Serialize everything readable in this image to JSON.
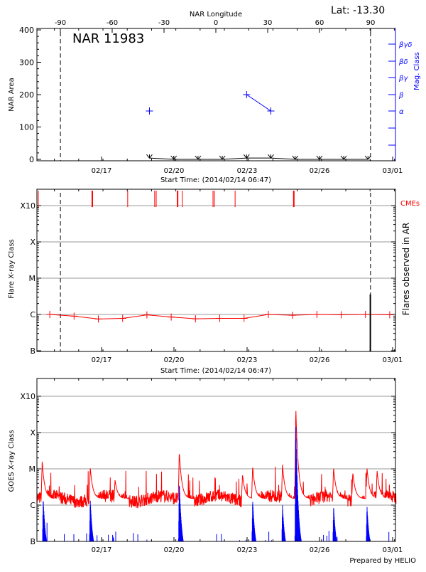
{
  "chart_data": [
    {
      "type": "line",
      "title": "NAR 11983",
      "corner_label": "Lat: -13.30",
      "xlabel": "Start Time: (2014/02/14 06:47)",
      "top_xlabel": "NAR Longitude",
      "ylabel": "NAR Area",
      "right_ylabel": "Mag. Class",
      "start_time": "2014-02-14T06:47",
      "x_ticks": [
        "02/17",
        "02/20",
        "02/23",
        "02/26",
        "03/01"
      ],
      "top_x_ticks": [
        "-90",
        "-60",
        "-30",
        "0",
        "30",
        "60",
        "90"
      ],
      "y_ticks": [
        "0",
        "100",
        "200",
        "300",
        "400"
      ],
      "ylim": [
        0,
        400
      ],
      "right_y_ticks": [
        "α",
        "β",
        "βγ",
        "βδ",
        "βγδ"
      ],
      "limb_markers": [
        "2014-02-15T06:00",
        "2014-02-28T00:30"
      ],
      "area": {
        "color": "#000000",
        "x": [
          "2014-02-18T22:00",
          "2014-02-19T22:00",
          "2014-02-20T22:00",
          "2014-02-21T22:00",
          "2014-02-22T22:00",
          "2014-02-23T22:00",
          "2014-02-24T22:00",
          "2014-02-25T22:00",
          "2014-02-26T22:00",
          "2014-02-27T22:00"
        ],
        "values": [
          4,
          0,
          0,
          0,
          4,
          4,
          0,
          0,
          0,
          0
        ]
      },
      "mag_class": {
        "color": "#0000ff",
        "x": [
          "2014-02-18T22:00",
          "2014-02-22T22:00",
          "2014-02-23T22:00"
        ],
        "values": [
          "α",
          "β",
          "α"
        ]
      }
    },
    {
      "type": "line",
      "xlabel": "Start Time: (2014/02/14 06:47)",
      "ylabel": "Flare X-ray Class",
      "right_ylabel": "Flares observed in AR",
      "cme_label": "CMEs",
      "y_ticks": [
        "B",
        "C",
        "M",
        "X",
        "X10"
      ],
      "y_scale": "log",
      "grid": true,
      "x_ticks": [
        "02/17",
        "02/20",
        "02/23",
        "02/26",
        "03/01"
      ],
      "limb_markers": [
        "2014-02-15T06:00",
        "2014-02-28T00:30"
      ],
      "flare_level": {
        "color": "#ff0000",
        "x": [
          "2014-02-14T19:30",
          "2014-02-15T19:30",
          "2014-02-16T19:30",
          "2014-02-17T19:30",
          "2014-02-18T19:30",
          "2014-02-19T19:30",
          "2014-02-20T19:30",
          "2014-02-21T19:30",
          "2014-02-22T19:30",
          "2014-02-23T19:30",
          "2014-02-24T19:30",
          "2014-02-25T19:30",
          "2014-02-26T19:30",
          "2014-02-27T19:30",
          "2014-02-28T19:30"
        ],
        "values_wm2": [
          1e-06,
          9e-07,
          7.5e-07,
          7.8e-07,
          9.7e-07,
          8.5e-07,
          7.6e-07,
          7.8e-07,
          7.8e-07,
          1e-06,
          9.5e-07,
          1e-06,
          9.8e-07,
          1e-06,
          9.8e-07
        ]
      },
      "cmes": {
        "color": "#ff0000",
        "times": [
          "2014-02-14T08:10",
          "2014-02-16T13:30",
          "2014-02-18T00:30",
          "2014-02-19T03:10",
          "2014-02-19T04:40",
          "2014-02-20T01:50",
          "2014-02-20T06:30",
          "2014-02-21T12:50",
          "2014-02-21T14:10",
          "2014-02-22T10:40",
          "2014-02-24T20:40"
        ]
      },
      "ar_flare": {
        "color": "#000000",
        "time": "2014-02-28T00:20",
        "value_wm2": 2.5e-06
      }
    },
    {
      "type": "line",
      "ylabel": "GOES X-ray Class",
      "footer": "Prepared by HELIO",
      "y_ticks": [
        "B",
        "C",
        "M",
        "X",
        "X10"
      ],
      "y_scale": "log",
      "grid": true,
      "x_ticks": [
        "02/17",
        "02/20",
        "02/23",
        "02/26",
        "03/01"
      ],
      "long_channel": {
        "color": "#ff0000",
        "background_wm2": 1.5e-06,
        "peaks": [
          {
            "time": "2014-02-14T12:00",
            "value_wm2": 1.6e-05
          },
          {
            "time": "2014-02-16T11:30",
            "value_wm2": 1.1e-05
          },
          {
            "time": "2014-02-17T12:00",
            "value_wm2": 5e-06
          },
          {
            "time": "2014-02-20T03:30",
            "value_wm2": 3e-05
          },
          {
            "time": "2014-02-22T18:00",
            "value_wm2": 7e-06
          },
          {
            "time": "2014-02-23T04:00",
            "value_wm2": 1.2e-05
          },
          {
            "time": "2014-02-24T09:30",
            "value_wm2": 1.3e-05
          },
          {
            "time": "2014-02-24T22:40",
            "value_wm2": 0.00049
          },
          {
            "time": "2014-02-26T12:00",
            "value_wm2": 1.1e-05
          },
          {
            "time": "2014-02-27T07:00",
            "value_wm2": 8e-06
          },
          {
            "time": "2014-02-27T21:00",
            "value_wm2": 1.1e-05
          },
          {
            "time": "2014-02-28T07:00",
            "value_wm2": 9e-06
          }
        ]
      },
      "short_channel": {
        "color": "#0000ff",
        "background_wm2": 1e-07,
        "peaks": [
          {
            "time": "2014-02-14T13:00",
            "value_wm2": 1.6e-06
          },
          {
            "time": "2014-02-16T11:30",
            "value_wm2": 1.5e-06
          },
          {
            "time": "2014-02-20T03:30",
            "value_wm2": 4.5e-06
          },
          {
            "time": "2014-02-23T04:00",
            "value_wm2": 1.5e-06
          },
          {
            "time": "2014-02-24T09:30",
            "value_wm2": 1e-06
          },
          {
            "time": "2014-02-24T22:40",
            "value_wm2": 0.0002
          },
          {
            "time": "2014-02-26T12:00",
            "value_wm2": 1e-06
          },
          {
            "time": "2014-02-27T21:00",
            "value_wm2": 1e-06
          }
        ]
      }
    }
  ]
}
